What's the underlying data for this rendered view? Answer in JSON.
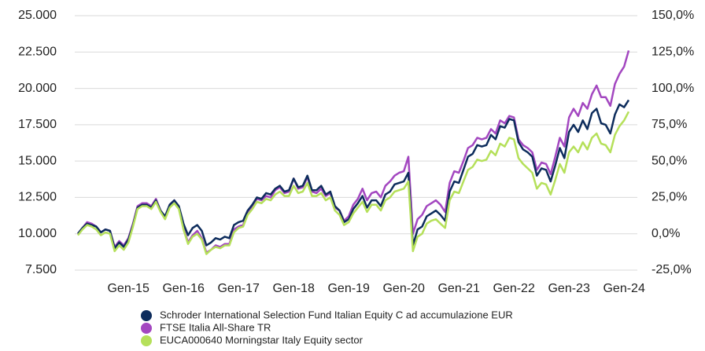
{
  "chart_data": {
    "type": "line",
    "x": [
      "2014-02",
      "2014-03",
      "2014-04",
      "2014-05",
      "2014-06",
      "2014-07",
      "2014-08",
      "2014-09",
      "2014-10",
      "2014-11",
      "2014-12",
      "2015-01",
      "2015-02",
      "2015-03",
      "2015-04",
      "2015-05",
      "2015-06",
      "2015-07",
      "2015-08",
      "2015-09",
      "2015-10",
      "2015-11",
      "2015-12",
      "2016-01",
      "2016-02",
      "2016-03",
      "2016-04",
      "2016-05",
      "2016-06",
      "2016-07",
      "2016-08",
      "2016-09",
      "2016-10",
      "2016-11",
      "2016-12",
      "2017-01",
      "2017-02",
      "2017-03",
      "2017-04",
      "2017-05",
      "2017-06",
      "2017-07",
      "2017-08",
      "2017-09",
      "2017-10",
      "2017-11",
      "2017-12",
      "2018-01",
      "2018-02",
      "2018-03",
      "2018-04",
      "2018-05",
      "2018-06",
      "2018-07",
      "2018-08",
      "2018-09",
      "2018-10",
      "2018-11",
      "2018-12",
      "2019-01",
      "2019-02",
      "2019-03",
      "2019-04",
      "2019-05",
      "2019-06",
      "2019-07",
      "2019-08",
      "2019-09",
      "2019-10",
      "2019-11",
      "2019-12",
      "2020-01",
      "2020-02",
      "2020-03",
      "2020-04",
      "2020-05",
      "2020-06",
      "2020-07",
      "2020-08",
      "2020-09",
      "2020-10",
      "2020-11",
      "2020-12",
      "2021-01",
      "2021-02",
      "2021-03",
      "2021-04",
      "2021-05",
      "2021-06",
      "2021-07",
      "2021-08",
      "2021-09",
      "2021-10",
      "2021-11",
      "2021-12",
      "2022-01",
      "2022-02",
      "2022-03",
      "2022-04",
      "2022-05",
      "2022-06",
      "2022-07",
      "2022-08",
      "2022-09",
      "2022-10",
      "2022-11",
      "2022-12",
      "2023-01",
      "2023-02",
      "2023-03",
      "2023-04",
      "2023-05",
      "2023-06",
      "2023-07",
      "2023-08",
      "2023-09",
      "2023-10",
      "2023-11",
      "2023-12",
      "2024-01",
      "2024-02"
    ],
    "xticks": [
      {
        "value": "2015-01",
        "label": "Gen-15"
      },
      {
        "value": "2016-01",
        "label": "Gen-16"
      },
      {
        "value": "2017-01",
        "label": "Gen-17"
      },
      {
        "value": "2018-01",
        "label": "Gen-18"
      },
      {
        "value": "2019-01",
        "label": "Gen-19"
      },
      {
        "value": "2020-01",
        "label": "Gen-20"
      },
      {
        "value": "2021-01",
        "label": "Gen-21"
      },
      {
        "value": "2022-01",
        "label": "Gen-22"
      },
      {
        "value": "2023-01",
        "label": "Gen-23"
      },
      {
        "value": "2024-01",
        "label": "Gen-24"
      }
    ],
    "ylim": [
      7500,
      25000
    ],
    "yticks": [
      {
        "value": 7500,
        "label": "7.500"
      },
      {
        "value": 10000,
        "label": "10.000"
      },
      {
        "value": 12500,
        "label": "12.500"
      },
      {
        "value": 15000,
        "label": "15.000"
      },
      {
        "value": 17500,
        "label": "17.500"
      },
      {
        "value": 20000,
        "label": "20.000"
      },
      {
        "value": 22500,
        "label": "22.500"
      },
      {
        "value": 25000,
        "label": "25.000"
      }
    ],
    "y2lim": [
      -25,
      150
    ],
    "y2ticks": [
      {
        "value": -25,
        "label": "-25,0%"
      },
      {
        "value": 0,
        "label": "0,0%"
      },
      {
        "value": 25,
        "label": "25,0%"
      },
      {
        "value": 50,
        "label": "50,0%"
      },
      {
        "value": 75,
        "label": "75,0%"
      },
      {
        "value": 100,
        "label": "100,0%"
      },
      {
        "value": 125,
        "label": "125,0%"
      },
      {
        "value": 150,
        "label": "150,0%"
      }
    ],
    "grid": true,
    "legend": "bottom",
    "series": [
      {
        "name": "Schroder International Selection Fund Italian Equity C ad accumulazione EUR",
        "color": "#0d2c5c",
        "values": [
          10000,
          10400,
          10700,
          10600,
          10500,
          10100,
          10300,
          10200,
          9000,
          9400,
          9100,
          9600,
          10600,
          11800,
          12000,
          12000,
          11800,
          12300,
          11600,
          11200,
          12000,
          12300,
          11900,
          10700,
          9900,
          10400,
          10600,
          10200,
          9200,
          9400,
          9700,
          9600,
          9800,
          9700,
          10600,
          10800,
          10900,
          11600,
          12000,
          12500,
          12400,
          12800,
          12700,
          13100,
          13300,
          12900,
          13000,
          13800,
          13200,
          13300,
          14000,
          13000,
          13000,
          13300,
          12700,
          12900,
          11900,
          11600,
          10800,
          11000,
          11700,
          12100,
          12600,
          11800,
          12300,
          12300,
          11900,
          12700,
          12900,
          13400,
          13500,
          13600,
          14200,
          9200,
          10300,
          10500,
          11200,
          11400,
          11600,
          11300,
          10900,
          12900,
          13600,
          13500,
          14400,
          15300,
          15500,
          16100,
          16000,
          16100,
          16800,
          16500,
          17400,
          17300,
          17900,
          17800,
          16300,
          15800,
          15600,
          15300,
          14000,
          14500,
          14400,
          13600,
          14700,
          15900,
          15200,
          17000,
          17500,
          17000,
          17800,
          17200,
          18300,
          18600,
          17600,
          17500,
          16900,
          18200,
          18900,
          18700,
          19200
        ]
      },
      {
        "name": "FTSE Italia All-Share TR",
        "color": "#a347c0",
        "values": [
          10000,
          10400,
          10800,
          10700,
          10500,
          10100,
          10300,
          10200,
          9100,
          9500,
          9200,
          9700,
          10700,
          11900,
          12100,
          12100,
          11900,
          12400,
          11600,
          11100,
          12000,
          12300,
          11800,
          10400,
          9400,
          9900,
          10200,
          9700,
          8700,
          8900,
          9200,
          9100,
          9300,
          9300,
          10300,
          10500,
          10600,
          11500,
          11900,
          12400,
          12300,
          12600,
          12500,
          13000,
          13200,
          12800,
          12900,
          13800,
          13100,
          13200,
          13900,
          12900,
          12800,
          13100,
          12600,
          12800,
          11800,
          11600,
          10900,
          11200,
          12000,
          12400,
          13100,
          12300,
          12800,
          12900,
          12500,
          13300,
          13600,
          14000,
          14200,
          14300,
          15300,
          10000,
          11000,
          11300,
          11900,
          12100,
          12300,
          12000,
          11500,
          13500,
          14300,
          14200,
          15000,
          15900,
          16100,
          16600,
          16500,
          16600,
          17200,
          16900,
          17800,
          17600,
          18100,
          18000,
          16500,
          16100,
          15900,
          15600,
          14400,
          14900,
          14800,
          14100,
          15300,
          16600,
          16000,
          18000,
          18600,
          18100,
          19000,
          18600,
          19600,
          20200,
          19400,
          19400,
          18800,
          20300,
          21000,
          21500,
          22600
        ]
      },
      {
        "name": "EUCA000640 Morningstar Italy Equity sector",
        "color": "#b5e05a",
        "values": [
          9900,
          10300,
          10600,
          10500,
          10300,
          9900,
          10100,
          10000,
          8800,
          9200,
          8900,
          9400,
          10500,
          11700,
          11900,
          11900,
          11700,
          12200,
          11500,
          11000,
          11800,
          12100,
          11700,
          10300,
          9300,
          9800,
          10000,
          9600,
          8600,
          8900,
          9100,
          9000,
          9200,
          9200,
          10100,
          10400,
          10500,
          11300,
          11700,
          12200,
          12100,
          12400,
          12300,
          12700,
          12900,
          12600,
          12600,
          13300,
          12800,
          12900,
          13500,
          12600,
          12600,
          12800,
          12300,
          12500,
          11600,
          11300,
          10600,
          10800,
          11400,
          11800,
          12200,
          11500,
          12000,
          12000,
          11600,
          12300,
          12500,
          12900,
          13000,
          13100,
          13600,
          8800,
          9800,
          10000,
          10700,
          10900,
          11000,
          10700,
          10400,
          12300,
          12900,
          12800,
          13600,
          14400,
          14600,
          15100,
          15000,
          15100,
          15700,
          15400,
          16200,
          16000,
          16600,
          16500,
          15200,
          14800,
          14500,
          14200,
          13100,
          13500,
          13400,
          12700,
          13700,
          14800,
          14200,
          15600,
          16000,
          15600,
          16300,
          15800,
          16600,
          16900,
          16200,
          16100,
          15600,
          16800,
          17400,
          17800,
          18400
        ]
      }
    ]
  }
}
